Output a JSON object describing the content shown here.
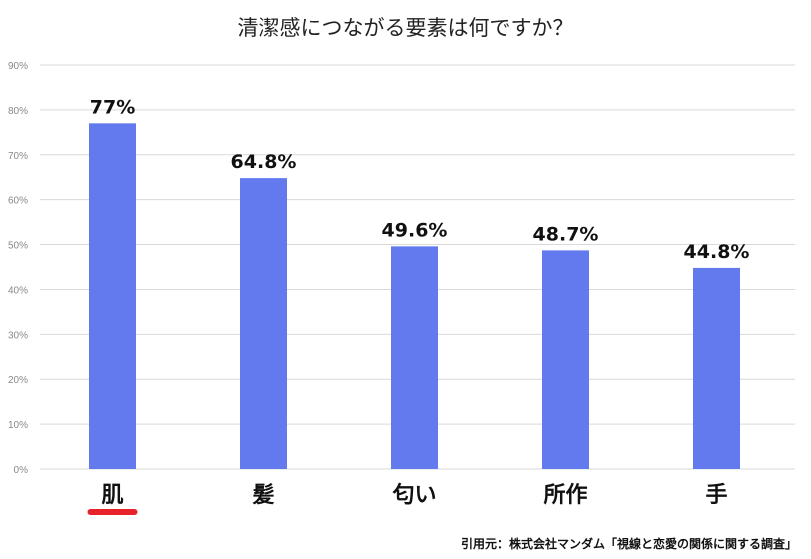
{
  "chart_data": {
    "type": "bar",
    "title": "清潔感につながる要素は何ですか？",
    "categories": [
      "肌",
      "髪",
      "匂い",
      "所作",
      "手"
    ],
    "values": [
      77,
      64.8,
      49.6,
      48.7,
      44.8
    ],
    "data_labels": [
      "77%",
      "64.8%",
      "49.6%",
      "48.7%",
      "44.8%"
    ],
    "ylim": [
      0,
      90
    ],
    "yticks": [
      "0%",
      "10%",
      "20%",
      "30%",
      "40%",
      "50%",
      "60%",
      "70%",
      "80%",
      "90%"
    ],
    "xlabel": "",
    "ylabel": "",
    "grid": true,
    "bar_color": "#6379ee",
    "highlight": {
      "category": "肌",
      "underline_color": "#e8222a"
    }
  },
  "source": "引用元：株式会社マンダム「視線と恋愛の関係に関する調査」"
}
